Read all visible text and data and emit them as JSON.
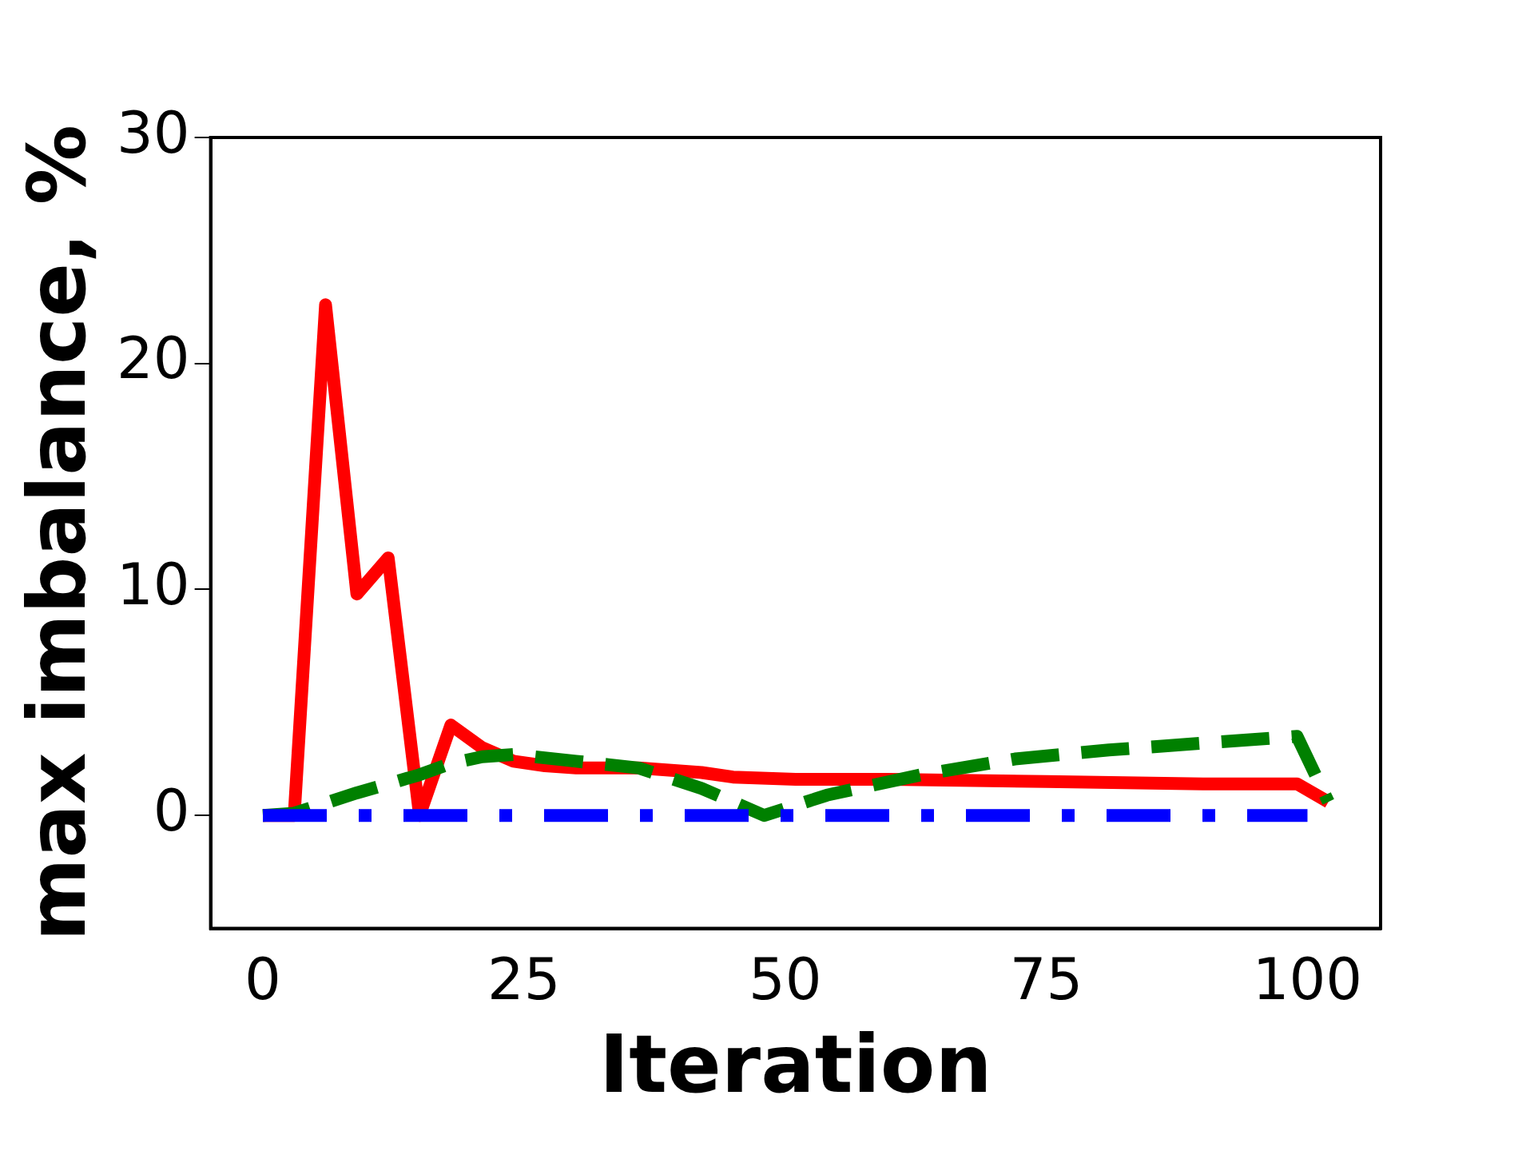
{
  "chart_data": {
    "type": "line",
    "xlabel": "Iteration",
    "ylabel": "max imbalance, %",
    "xlim": [
      -5,
      107
    ],
    "xticks": [
      0,
      25,
      50,
      75,
      100
    ],
    "ylim": [
      -5,
      30
    ],
    "yticks": [
      0,
      10,
      20,
      30
    ],
    "grid": false,
    "legend": false,
    "marker": "none",
    "series": [
      {
        "color": "#ff0000",
        "line_style": "solid",
        "x": [
          0,
          3,
          6,
          9,
          12,
          15,
          18,
          21,
          24,
          27,
          30,
          36,
          42,
          45,
          51,
          60,
          75,
          90,
          99,
          102
        ],
        "values": [
          0,
          0,
          22.6,
          9.8,
          11.4,
          0,
          4,
          3.0,
          2.4,
          2.2,
          2.1,
          2.1,
          1.9,
          1.7,
          1.6,
          1.6,
          1.5,
          1.4,
          1.4,
          0.6
        ]
      },
      {
        "color": "#008000",
        "line_style": "dashed",
        "x": [
          0,
          3,
          9,
          15,
          18,
          21,
          24,
          30,
          36,
          42,
          48,
          54,
          63,
          72,
          81,
          90,
          99,
          102
        ],
        "values": [
          0,
          0.1,
          1.0,
          1.8,
          2.3,
          2.6,
          2.7,
          2.4,
          2.1,
          1.2,
          0,
          0.9,
          1.8,
          2.5,
          2.9,
          3.2,
          3.5,
          0.6
        ]
      },
      {
        "color": "#0000ff",
        "line_style": "dashdot",
        "x": [
          0,
          100
        ],
        "values": [
          0,
          0
        ]
      }
    ]
  }
}
